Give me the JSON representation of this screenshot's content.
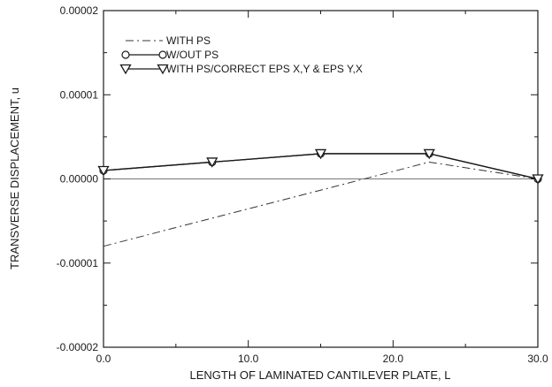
{
  "chart_data": {
    "type": "line",
    "title": "",
    "xlabel": "LENGTH OF LAMINATED CANTILEVER PLATE, L",
    "ylabel": "TRANSVERSE DISPLACEMENT, u",
    "xlim": [
      0,
      30
    ],
    "ylim": [
      -2e-05,
      2e-05
    ],
    "x_ticks": [
      0,
      10,
      20,
      30
    ],
    "x_tick_labels": [
      "0.0",
      "10.0",
      "20.0",
      "30.0"
    ],
    "y_ticks": [
      -2e-05,
      -1e-05,
      0,
      1e-05,
      2e-05
    ],
    "y_tick_labels": [
      "-0.00002",
      "-0.00001",
      "0.00000",
      "0.00001",
      "0.00002"
    ],
    "grid": false,
    "zero_line": true,
    "legend_position": "top-left",
    "series": [
      {
        "name": "WITH PS",
        "style": "dash-dot",
        "marker": "none",
        "color": "#333333",
        "x": [
          0,
          22.5,
          30
        ],
        "y": [
          -8e-06,
          2e-06,
          0
        ]
      },
      {
        "name": "W/OUT PS",
        "style": "solid",
        "marker": "circle",
        "color": "#1a1a1a",
        "x": [
          0,
          7.5,
          15,
          22.5,
          30
        ],
        "y": [
          1e-06,
          2e-06,
          3e-06,
          3e-06,
          0
        ]
      },
      {
        "name": "WITH PS/CORRECT EPS X,Y & EPS Y,X",
        "style": "solid",
        "marker": "triangle-down",
        "color": "#1a1a1a",
        "x": [
          0,
          7.5,
          15,
          22.5,
          30
        ],
        "y": [
          1e-06,
          2e-06,
          3e-06,
          3e-06,
          0
        ]
      }
    ]
  }
}
